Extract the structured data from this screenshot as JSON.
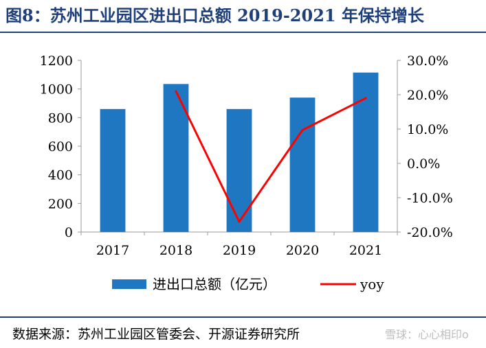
{
  "title": "图8：苏州工业园区进出口总额 2019-2021 年保持增长",
  "source": "数据来源：苏州工业园区管委会、开源证券研究所",
  "watermark": "雪球：心心相印o",
  "chart_data": {
    "type": "bar",
    "categories": [
      "2017",
      "2018",
      "2019",
      "2020",
      "2021"
    ],
    "series": [
      {
        "name": "进出口总额（亿元）",
        "type": "bar",
        "axis": "left",
        "color": "#1f77c2",
        "values": [
          860,
          1035,
          860,
          940,
          1115
        ]
      },
      {
        "name": "yoy",
        "type": "line",
        "axis": "right",
        "color": "#ff0000",
        "values": [
          null,
          21.0,
          -17.0,
          9.7,
          19.0
        ]
      }
    ],
    "ylim_left": [
      0,
      1200
    ],
    "yticks_left": [
      "0",
      "200",
      "400",
      "600",
      "800",
      "1000",
      "1200"
    ],
    "ylim_right": [
      -20,
      30
    ],
    "yticks_right": [
      "-20.0%",
      "-10.0%",
      "0.0%",
      "10.0%",
      "20.0%",
      "30.0%"
    ],
    "grid": false,
    "legend": "bottom"
  }
}
